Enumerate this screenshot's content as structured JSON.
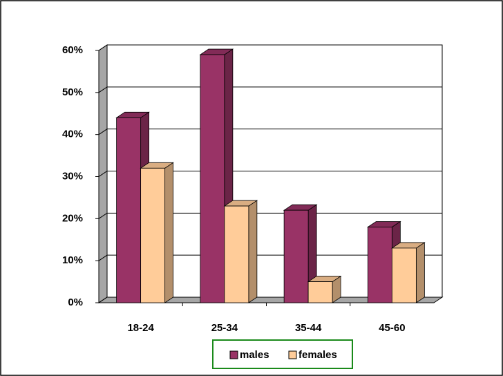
{
  "chart_data": {
    "type": "bar3d",
    "categories": [
      "18-24",
      "25-34",
      "35-44",
      "45-60"
    ],
    "series": [
      {
        "name": "males",
        "color": "#993366",
        "values": [
          44,
          59,
          22,
          18
        ]
      },
      {
        "name": "females",
        "color": "#ffcc99",
        "values": [
          32,
          23,
          5,
          13
        ]
      }
    ],
    "ylim": [
      0,
      60
    ],
    "yticks": [
      {
        "value": 0,
        "label": "0%"
      },
      {
        "value": 10,
        "label": "10%"
      },
      {
        "value": 20,
        "label": "20%"
      },
      {
        "value": 30,
        "label": "30%"
      },
      {
        "value": 40,
        "label": "40%"
      },
      {
        "value": 50,
        "label": "50%"
      },
      {
        "value": 60,
        "label": "60%"
      }
    ],
    "grid": true,
    "legend": "bottom"
  }
}
